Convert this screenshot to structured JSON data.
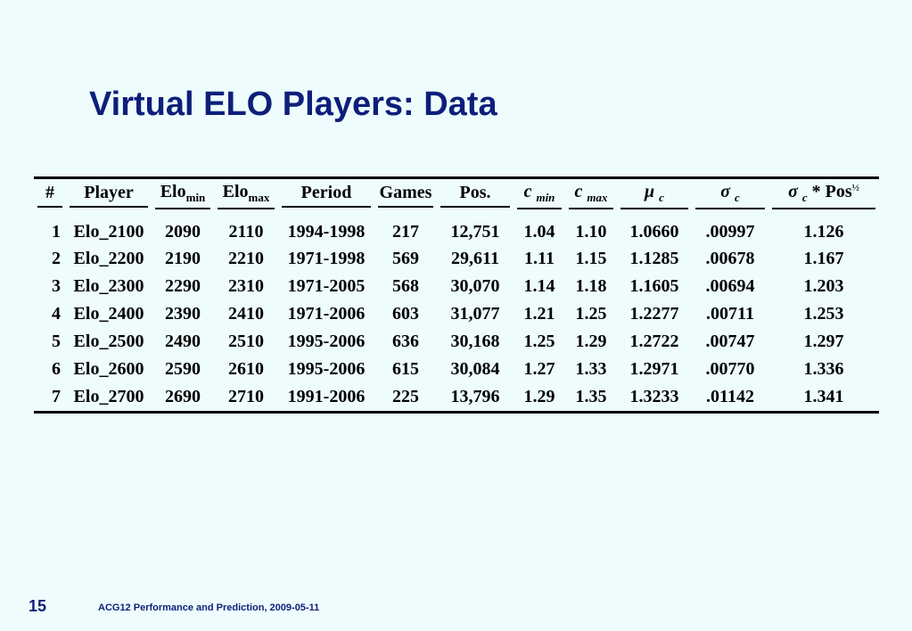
{
  "title": "Virtual ELO Players: Data",
  "table": {
    "headers": {
      "num": "#",
      "player": "Player",
      "elo_min_base": "Elo",
      "elo_min_sub": "min",
      "elo_max_base": "Elo",
      "elo_max_sub": "max",
      "period": "Period",
      "games": "Games",
      "pos": "Pos.",
      "cmin_base": "c",
      "cmin_sub": "min",
      "cmax_base": "c",
      "cmax_sub": "max",
      "mu_base": "μ",
      "mu_sub": "c",
      "sigma_base": "σ",
      "sigma_sub": "c",
      "spos_base": "σ",
      "spos_sub": "c",
      "spos_mid": " * Pos",
      "spos_sup": "½"
    },
    "rows": [
      {
        "num": "1",
        "player": "Elo_2100",
        "elo_min": "2090",
        "elo_max": "2110",
        "period": "1994-1998",
        "games": "217",
        "pos": "12,751",
        "c_min": "1.04",
        "c_max": "1.10",
        "mu_c": "1.0660",
        "sigma_c": ".00997",
        "sigma_pos": "1.126"
      },
      {
        "num": "2",
        "player": "Elo_2200",
        "elo_min": "2190",
        "elo_max": "2210",
        "period": "1971-1998",
        "games": "569",
        "pos": "29,611",
        "c_min": "1.11",
        "c_max": "1.15",
        "mu_c": "1.1285",
        "sigma_c": ".00678",
        "sigma_pos": "1.167"
      },
      {
        "num": "3",
        "player": "Elo_2300",
        "elo_min": "2290",
        "elo_max": "2310",
        "period": "1971-2005",
        "games": "568",
        "pos": "30,070",
        "c_min": "1.14",
        "c_max": "1.18",
        "mu_c": "1.1605",
        "sigma_c": ".00694",
        "sigma_pos": "1.203"
      },
      {
        "num": "4",
        "player": "Elo_2400",
        "elo_min": "2390",
        "elo_max": "2410",
        "period": "1971-2006",
        "games": "603",
        "pos": "31,077",
        "c_min": "1.21",
        "c_max": "1.25",
        "mu_c": "1.2277",
        "sigma_c": ".00711",
        "sigma_pos": "1.253"
      },
      {
        "num": "5",
        "player": "Elo_2500",
        "elo_min": "2490",
        "elo_max": "2510",
        "period": "1995-2006",
        "games": "636",
        "pos": "30,168",
        "c_min": "1.25",
        "c_max": "1.29",
        "mu_c": "1.2722",
        "sigma_c": ".00747",
        "sigma_pos": "1.297"
      },
      {
        "num": "6",
        "player": "Elo_2600",
        "elo_min": "2590",
        "elo_max": "2610",
        "period": "1995-2006",
        "games": "615",
        "pos": "30,084",
        "c_min": "1.27",
        "c_max": "1.33",
        "mu_c": "1.2971",
        "sigma_c": ".00770",
        "sigma_pos": "1.336"
      },
      {
        "num": "7",
        "player": "Elo_2700",
        "elo_min": "2690",
        "elo_max": "2710",
        "period": "1991-2006",
        "games": "225",
        "pos": "13,796",
        "c_min": "1.29",
        "c_max": "1.35",
        "mu_c": "1.3233",
        "sigma_c": ".01142",
        "sigma_pos": "1.341"
      }
    ]
  },
  "footer": {
    "page_number": "15",
    "text": "ACG12 Performance and Prediction, 2009-05-11"
  },
  "colors": {
    "background": "#eefcfd",
    "title": "#0d1f7a"
  }
}
